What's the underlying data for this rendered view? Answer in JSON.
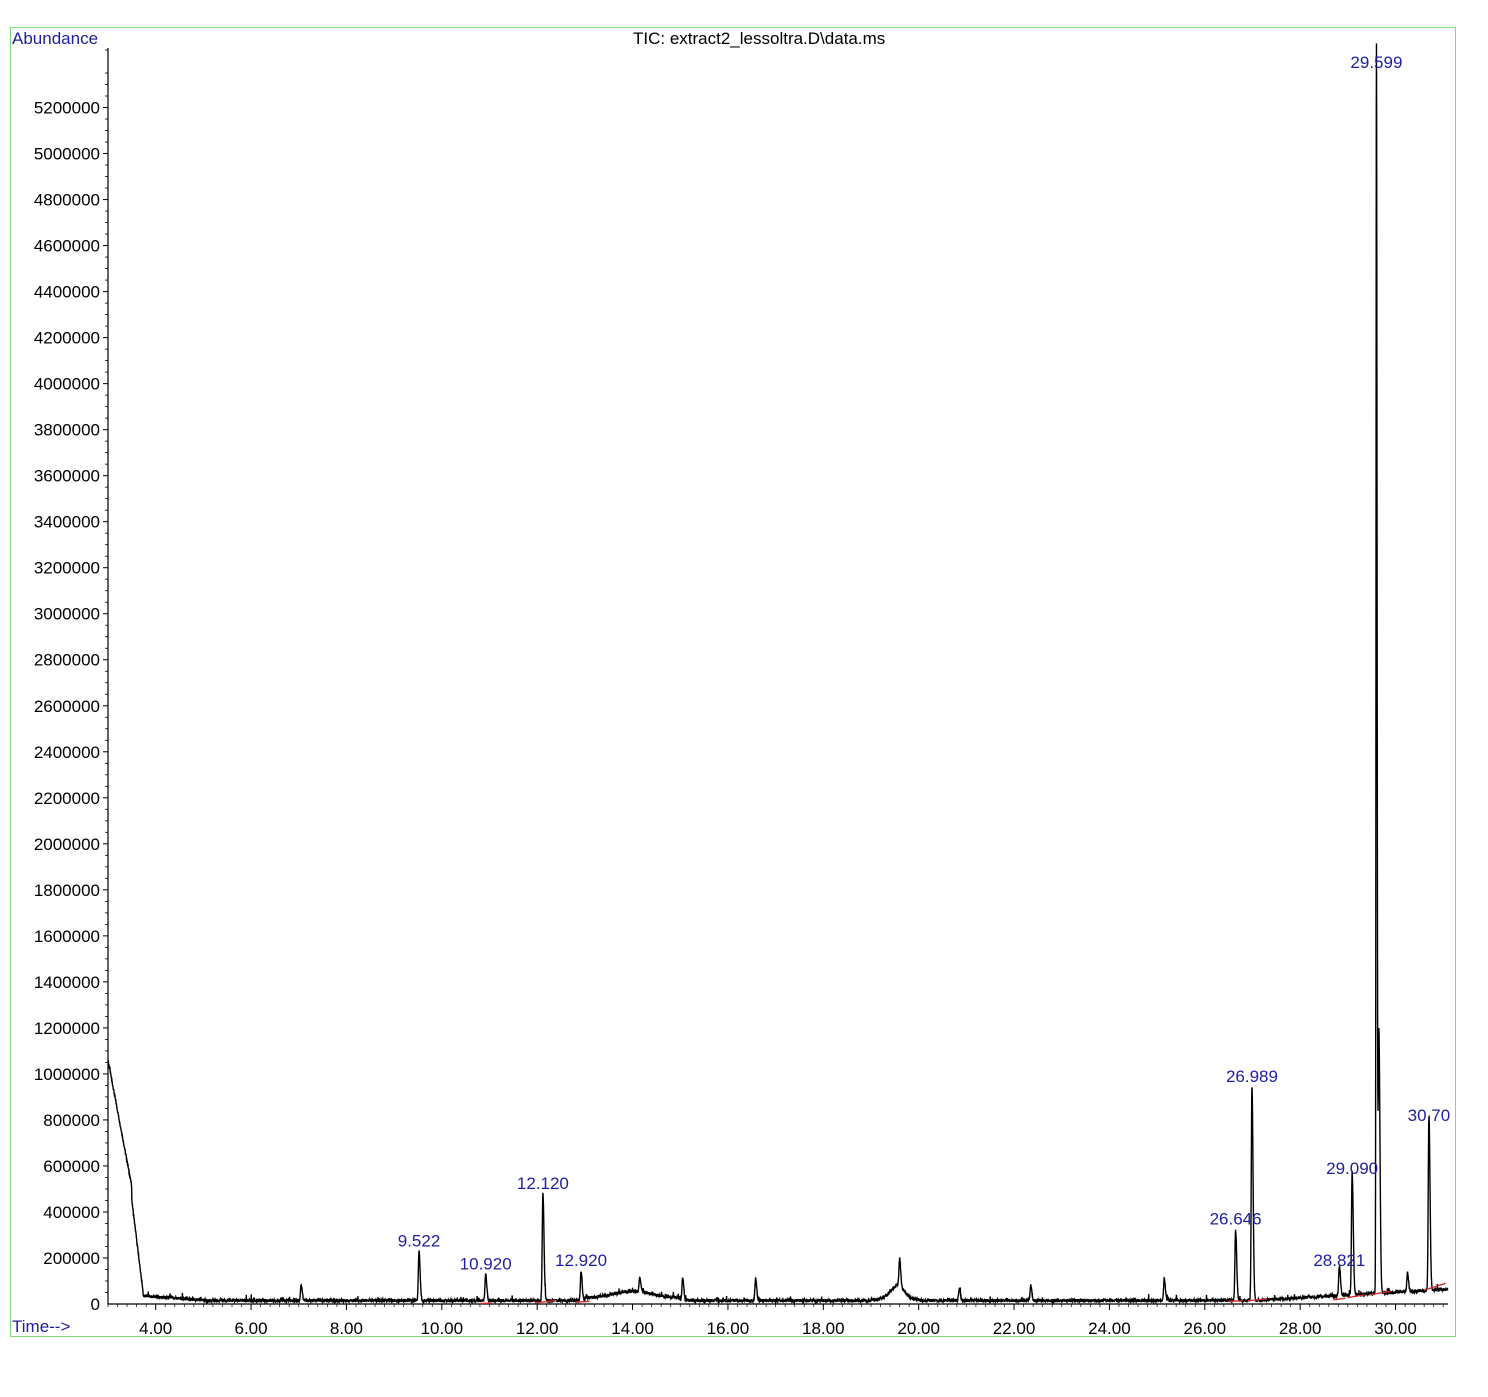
{
  "chart_data": {
    "type": "line",
    "title": "TIC: extract2_lessoltra.D\\data.ms",
    "ylabel": "Abundance",
    "xlabel": "Time-->",
    "xlim": [
      3.0,
      31.1
    ],
    "ylim": [
      0,
      5450000
    ],
    "grid": false,
    "colors": {
      "trace": "#000000",
      "baseline": "#d03030",
      "peak_label": "#1f1fa0",
      "frame": "#7ddc7d"
    },
    "y_ticks": [
      {
        "value": 200000,
        "label": "200000"
      },
      {
        "value": 400000,
        "label": "400000"
      },
      {
        "value": 600000,
        "label": "600000"
      },
      {
        "value": 800000,
        "label": "800000"
      },
      {
        "value": 1000000,
        "label": "1000000"
      },
      {
        "value": 1200000,
        "label": "1200000"
      },
      {
        "value": 1400000,
        "label": "1400000"
      },
      {
        "value": 1600000,
        "label": "1600000"
      },
      {
        "value": 1800000,
        "label": "1800000"
      },
      {
        "value": 2000000,
        "label": "2000000"
      },
      {
        "value": 2200000,
        "label": "2200000"
      },
      {
        "value": 2400000,
        "label": "2400000"
      },
      {
        "value": 2600000,
        "label": "2600000"
      },
      {
        "value": 2800000,
        "label": "2800000"
      },
      {
        "value": 3000000,
        "label": "3000000"
      },
      {
        "value": 3200000,
        "label": "3200000"
      },
      {
        "value": 3400000,
        "label": "3400000"
      },
      {
        "value": 3600000,
        "label": "3600000"
      },
      {
        "value": 3800000,
        "label": "3800000"
      },
      {
        "value": 4000000,
        "label": "4000000"
      },
      {
        "value": 4200000,
        "label": "4200000"
      },
      {
        "value": 4400000,
        "label": "4400000"
      },
      {
        "value": 4600000,
        "label": "4600000"
      },
      {
        "value": 4800000,
        "label": "4800000"
      },
      {
        "value": 5000000,
        "label": "5000000"
      },
      {
        "value": 5200000,
        "label": "5200000"
      }
    ],
    "y_zero_label": "0",
    "x_ticks": [
      {
        "value": 4,
        "label": "4.00"
      },
      {
        "value": 6,
        "label": "6.00"
      },
      {
        "value": 8,
        "label": "8.00"
      },
      {
        "value": 10,
        "label": "10.00"
      },
      {
        "value": 12,
        "label": "12.00"
      },
      {
        "value": 14,
        "label": "14.00"
      },
      {
        "value": 16,
        "label": "16.00"
      },
      {
        "value": 18,
        "label": "18.00"
      },
      {
        "value": 20,
        "label": "20.00"
      },
      {
        "value": 22,
        "label": "22.00"
      },
      {
        "value": 24,
        "label": "24.00"
      },
      {
        "value": 26,
        "label": "26.00"
      },
      {
        "value": 28,
        "label": "28.00"
      },
      {
        "value": 30,
        "label": "30.00"
      }
    ],
    "peaks": [
      {
        "rt": 9.522,
        "label": "9.522",
        "height": 215000
      },
      {
        "rt": 10.92,
        "label": "10.920",
        "height": 115000
      },
      {
        "rt": 12.12,
        "label": "12.120",
        "height": 465000
      },
      {
        "rt": 12.92,
        "label": "12.920",
        "height": 130000
      },
      {
        "rt": 26.646,
        "label": "26.646",
        "height": 310000
      },
      {
        "rt": 26.989,
        "label": "26.989",
        "height": 930000
      },
      {
        "rt": 28.821,
        "label": "28.821",
        "height": 130000
      },
      {
        "rt": 29.09,
        "label": "29.090",
        "height": 530000
      },
      {
        "rt": 29.599,
        "label": "29.599",
        "height": 5450000
      },
      {
        "rt": 30.7,
        "label": "30.70",
        "height": 760000
      }
    ],
    "minor_peaks": [
      {
        "rt": 7.05,
        "height": 70000
      },
      {
        "rt": 14.15,
        "height": 60000
      },
      {
        "rt": 15.05,
        "height": 100000
      },
      {
        "rt": 16.58,
        "height": 95000
      },
      {
        "rt": 19.6,
        "height": 120000
      },
      {
        "rt": 20.85,
        "height": 50000
      },
      {
        "rt": 22.35,
        "height": 65000
      },
      {
        "rt": 25.15,
        "height": 95000
      },
      {
        "rt": 29.65,
        "height": 1150000
      },
      {
        "rt": 30.25,
        "height": 80000
      }
    ],
    "baseline_segments": [
      {
        "x0": 10.8,
        "y0": 2000,
        "x1": 11.05,
        "y1": 4000
      },
      {
        "x0": 11.95,
        "y0": 5000,
        "x1": 12.4,
        "y1": 15000
      },
      {
        "x0": 12.8,
        "y0": 8000,
        "x1": 13.1,
        "y1": 12000
      },
      {
        "x0": 26.5,
        "y0": 12000,
        "x1": 26.8,
        "y1": 14000
      },
      {
        "x0": 26.9,
        "y0": 14000,
        "x1": 27.3,
        "y1": 22000
      },
      {
        "x0": 28.7,
        "y0": 18000,
        "x1": 28.95,
        "y1": 25000
      },
      {
        "x0": 29.0,
        "y0": 28000,
        "x1": 29.35,
        "y1": 40000
      },
      {
        "x0": 29.45,
        "y0": 40000,
        "x1": 29.9,
        "y1": 55000
      },
      {
        "x0": 30.6,
        "y0": 60000,
        "x1": 31.05,
        "y1": 90000
      }
    ]
  }
}
